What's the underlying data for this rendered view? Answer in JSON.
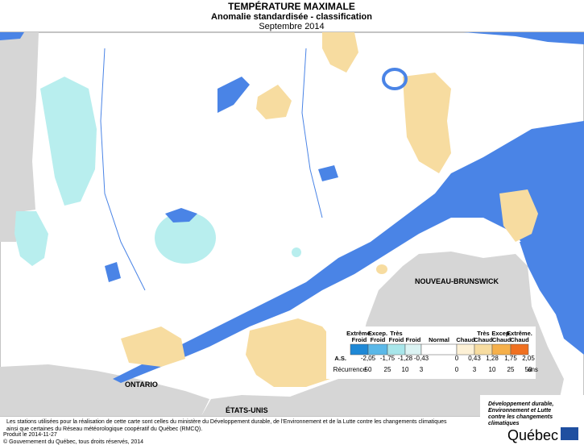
{
  "header": {
    "title": "TEMPÉRATURE MAXIMALE",
    "subtitle": "Anomalie standardisée - classification",
    "period": "Septembre 2014"
  },
  "map_labels": {
    "new_brunswick": "NOUVEAU-BRUNSWICK",
    "ontario": "ONTARIO",
    "usa": "ÉTATS-UNIS"
  },
  "legend": {
    "classes": [
      {
        "lines": [
          "Extrême.",
          "Froid"
        ],
        "color": "#1e88d6"
      },
      {
        "lines": [
          "Excep.",
          "Froid"
        ],
        "color": "#5ab8e8"
      },
      {
        "lines": [
          "Très",
          "Froid"
        ],
        "color": "#a8e6ea"
      },
      {
        "lines": [
          "Froid"
        ],
        "color": "#dcf4f4"
      },
      {
        "lines": [
          "Normal"
        ],
        "color": "#ffffff"
      },
      {
        "lines": [
          "Chaud"
        ],
        "color": "#fdf1d6"
      },
      {
        "lines": [
          "Très",
          "Chaud"
        ],
        "color": "#f7dca0"
      },
      {
        "lines": [
          "Excep.",
          "Chaud"
        ],
        "color": "#f6b04a"
      },
      {
        "lines": [
          "Extrême.",
          "Chaud"
        ],
        "color": "#f07020"
      }
    ],
    "as_label": "A.S.",
    "as_values": [
      "-2,05",
      "-1,75",
      "-1,28",
      "-0,43",
      "0",
      "0,43",
      "1,28",
      "1,75",
      "2,05"
    ],
    "recurrence_label": "Récurrence",
    "recurrence_values": [
      50,
      25,
      10,
      3,
      0,
      3,
      10,
      25,
      50
    ],
    "unit": "ans"
  },
  "footer": {
    "note_lines": [
      "Les stations utilisées pour la réalisation de cette carte sont celles du ministère du Développement durable, de l'Environnement et de la Lutte contre les changements climatiques",
      "ainsi que certaines du Réseau météorologique coopératif du Québec (RMCQ)."
    ],
    "produced": "Produit le 2014-11-27",
    "copyright": "© Gouvernement du Québec, tous droits réservés, 2014"
  },
  "logo": {
    "lines": [
      "Développement durable,",
      "Environnement et Lutte",
      "contre les changements",
      "climatiques"
    ],
    "name": "Québec"
  }
}
